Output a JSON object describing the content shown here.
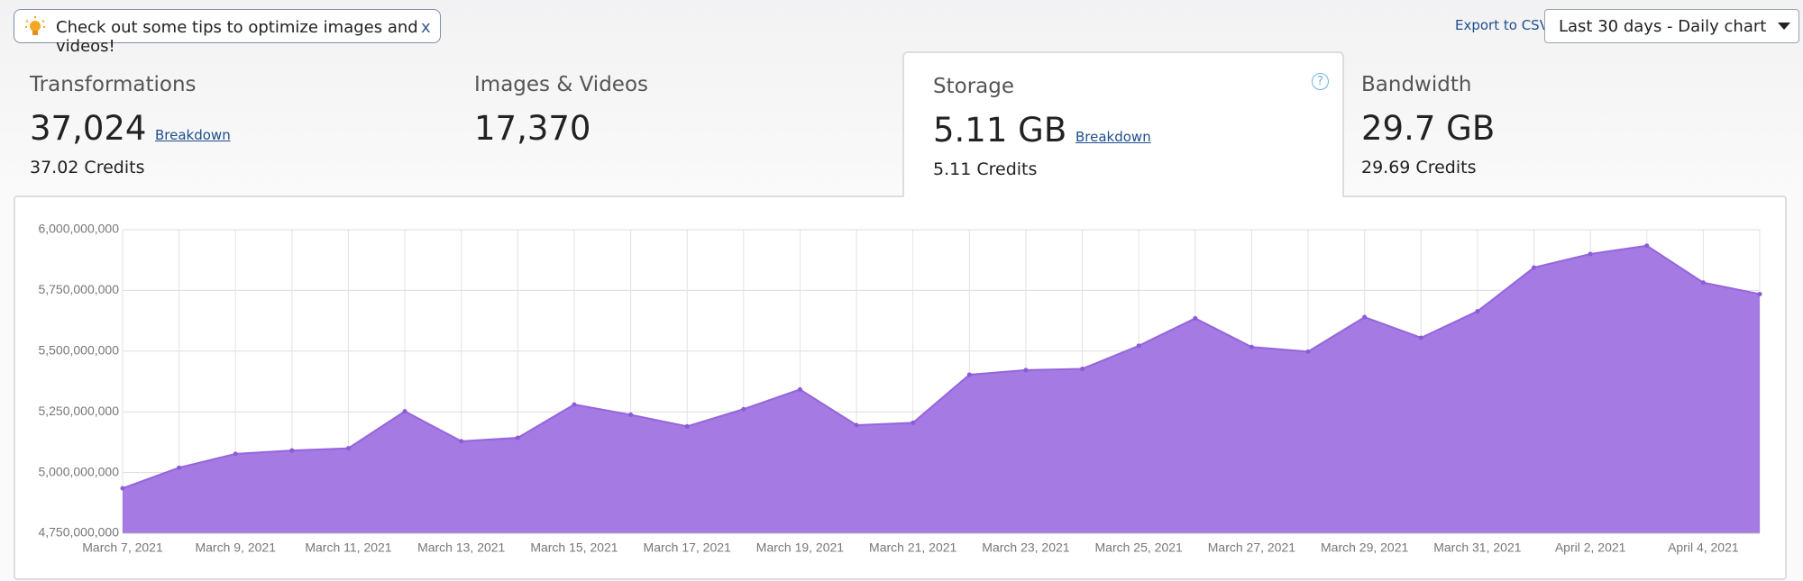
{
  "banner": {
    "text": "Check out some tips to optimize images and videos!",
    "close": "x"
  },
  "export": "Export to CSV",
  "range_select": "Last 30 days - Daily chart",
  "tabs": [
    {
      "title": "Transformations",
      "value": "37,024",
      "link": "Breakdown",
      "credits": "37.02 Credits"
    },
    {
      "title": "Images & Videos",
      "value": "17,370"
    },
    {
      "title": "Storage",
      "value": "5.11 GB",
      "link": "Breakdown",
      "credits": "5.11 Credits",
      "help": "?"
    },
    {
      "title": "Bandwidth",
      "value": "29.7 GB",
      "credits": "29.69 Credits"
    }
  ],
  "chart_data": {
    "type": "area",
    "color": "#a57ae3",
    "grid": true,
    "categories": [
      "March 7, 2021",
      null,
      "March 9, 2021",
      null,
      "March 11, 2021",
      null,
      "March 13, 2021",
      null,
      "March 15, 2021",
      null,
      "March 17, 2021",
      null,
      "March 19, 2021",
      null,
      "March 21, 2021",
      null,
      "March 23, 2021",
      null,
      "March 25, 2021",
      null,
      "March 27, 2021",
      null,
      "March 29, 2021",
      null,
      "March 31, 2021",
      null,
      "April 2, 2021",
      null,
      "April 4, 2021",
      null
    ],
    "values": [
      4935000000,
      5020000000,
      5077000000,
      5091000000,
      5100000000,
      5252000000,
      5129000000,
      5143000000,
      5280000000,
      5238000000,
      5190000000,
      5261000000,
      5342000000,
      5195000000,
      5205000000,
      5403000000,
      5422000000,
      5427000000,
      5522000000,
      5635000000,
      5517000000,
      5498000000,
      5640000000,
      5555000000,
      5664000000,
      5844000000,
      5900000000,
      5934000000,
      5782000000,
      5735000000
    ],
    "ylim": [
      4750000000,
      6000000000
    ],
    "yticks": [
      {
        "value": 4750000000,
        "label": "4,750,000,000"
      },
      {
        "value": 5000000000,
        "label": "5,000,000,000"
      },
      {
        "value": 5250000000,
        "label": "5,250,000,000"
      },
      {
        "value": 5500000000,
        "label": "5,500,000,000"
      },
      {
        "value": 5750000000,
        "label": "5,750,000,000"
      },
      {
        "value": 6000000000,
        "label": "6,000,000,000"
      }
    ]
  }
}
